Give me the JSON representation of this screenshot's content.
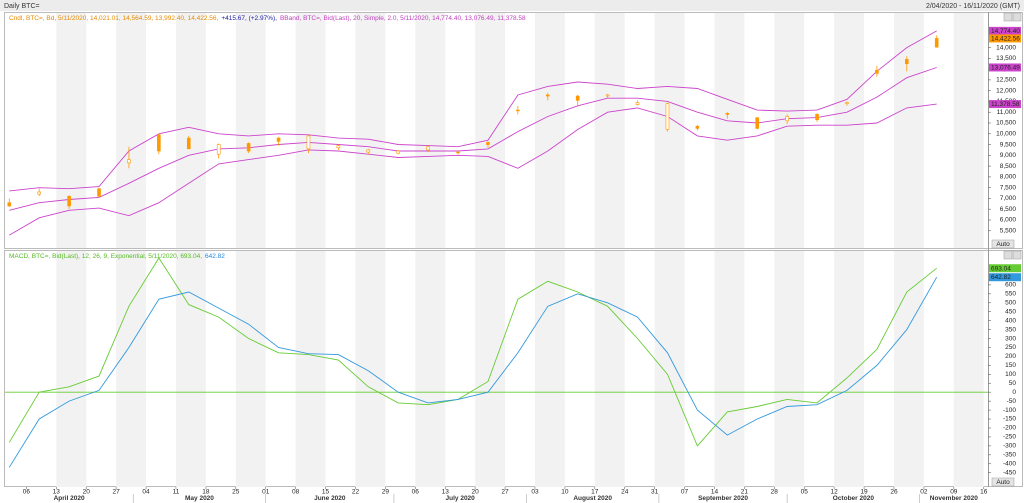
{
  "header": {
    "title": "Daily BTC=",
    "range": "2/04/2020 - 16/11/2020 (GMT)",
    "auto_label": "Auto"
  },
  "chart_data": [
    {
      "type": "candlestick",
      "legend": [
        {
          "text": "Cndl, BTC=, Bd, 5/11/2020, 14,021.01, 14,564.59, 13,992.40, 14,422.56,",
          "color": "#e68a00"
        },
        {
          "text": "+415.67, (+2.97%),",
          "color": "#1a1aa6"
        },
        {
          "text": "BBand, BTC=, Bid(Last), 20, Simple, 2.0, 5/11/2020, 14,774.40, 13,076.49, 11,378.58",
          "color": "#c040c0"
        }
      ],
      "x": [
        "2020-04-02",
        "2020-04-09",
        "2020-04-16",
        "2020-04-23",
        "2020-04-30",
        "2020-05-07",
        "2020-05-14",
        "2020-05-21",
        "2020-05-28",
        "2020-06-04",
        "2020-06-11",
        "2020-06-18",
        "2020-06-25",
        "2020-07-02",
        "2020-07-09",
        "2020-07-16",
        "2020-07-23",
        "2020-07-30",
        "2020-08-06",
        "2020-08-13",
        "2020-08-20",
        "2020-08-27",
        "2020-09-03",
        "2020-09-10",
        "2020-09-17",
        "2020-09-24",
        "2020-10-01",
        "2020-10-08",
        "2020-10-15",
        "2020-10-22",
        "2020-10-29",
        "2020-11-05"
      ],
      "open": [
        6650,
        7300,
        6650,
        7100,
        8800,
        9200,
        9300,
        9500,
        9200,
        9650,
        9900,
        9450,
        9250,
        9200,
        9400,
        9150,
        9500,
        11100,
        11750,
        11550,
        11800,
        11450,
        11400,
        10250,
        10900,
        10250,
        10800,
        10650,
        11450,
        12800,
        13250,
        14021.01
      ],
      "high": [
        7000,
        7450,
        7150,
        7500,
        9400,
        10000,
        9900,
        9550,
        9600,
        9850,
        9950,
        9500,
        9300,
        9250,
        9450,
        9200,
        9650,
        11300,
        11900,
        11800,
        11850,
        11550,
        11450,
        10400,
        11000,
        10750,
        10900,
        10950,
        11500,
        13150,
        13600,
        14564.59
      ],
      "low": [
        6600,
        7100,
        6500,
        7050,
        8400,
        9050,
        9300,
        8850,
        9100,
        9450,
        9100,
        9250,
        9050,
        9050,
        9150,
        9050,
        9350,
        10900,
        11550,
        11250,
        11650,
        11300,
        10100,
        10150,
        10700,
        10200,
        10450,
        10550,
        11300,
        12650,
        12900,
        13992.4
      ],
      "close": [
        6800,
        7200,
        7100,
        7450,
        8650,
        9950,
        9800,
        9050,
        9550,
        9800,
        9300,
        9350,
        9150,
        9100,
        9250,
        9150,
        9600,
        11100,
        11800,
        11750,
        11750,
        11350,
        10200,
        10350,
        10950,
        10750,
        10600,
        10900,
        11400,
        12950,
        13450,
        14422.56
      ],
      "color": "#ff9900",
      "series": [
        {
          "name": "BBand upper",
          "color": "#cc44cc",
          "values": [
            7350,
            7500,
            7450,
            7550,
            9200,
            10000,
            10300,
            10000,
            9900,
            10000,
            9950,
            9800,
            9750,
            9500,
            9450,
            9400,
            9700,
            11800,
            12200,
            12400,
            12300,
            12100,
            12200,
            12100,
            11600,
            11100,
            11050,
            11100,
            11600,
            12900,
            14000,
            14774.4
          ]
        },
        {
          "name": "BBand middle",
          "color": "#cc44cc",
          "values": [
            6450,
            6800,
            6950,
            7050,
            7700,
            8400,
            9000,
            9300,
            9350,
            9500,
            9600,
            9500,
            9400,
            9200,
            9200,
            9200,
            9300,
            10100,
            10800,
            11300,
            11650,
            11650,
            11500,
            11000,
            10600,
            10500,
            10700,
            10750,
            11000,
            11700,
            12600,
            13076.49
          ]
        },
        {
          "name": "BBand lower",
          "color": "#cc44cc",
          "values": [
            5300,
            6100,
            6450,
            6550,
            6200,
            6800,
            7700,
            8600,
            8800,
            9000,
            9250,
            9200,
            9050,
            8900,
            8950,
            9000,
            8950,
            8400,
            9200,
            10200,
            11000,
            11200,
            10800,
            9900,
            9700,
            9900,
            10350,
            10400,
            10400,
            10500,
            11200,
            11378.58
          ]
        }
      ],
      "tags": [
        {
          "value": 14774.4,
          "label": "14,774.40",
          "color": "#cc44cc"
        },
        {
          "value": 14422.56,
          "label": "14,422.56",
          "color": "#ff9900"
        },
        {
          "value": 13076.49,
          "label": "13,076.49",
          "color": "#cc44cc"
        },
        {
          "value": 11378.58,
          "label": "11,378.58",
          "color": "#cc44cc"
        }
      ],
      "xlim": [
        "2020-04-01",
        "2020-11-17"
      ],
      "ylim": [
        4700,
        15650
      ],
      "yticks": [
        {
          "value": 5500,
          "label": "5,500"
        },
        {
          "value": 6000,
          "label": "6,000"
        },
        {
          "value": 6500,
          "label": "6,500"
        },
        {
          "value": 7000,
          "label": "7,000"
        },
        {
          "value": 7500,
          "label": "7,500"
        },
        {
          "value": 8000,
          "label": "8,000"
        },
        {
          "value": 8500,
          "label": "8,500"
        },
        {
          "value": 9000,
          "label": "9,000"
        },
        {
          "value": 9500,
          "label": "9,500"
        },
        {
          "value": 10000,
          "label": "10,000"
        },
        {
          "value": 10500,
          "label": "10,500"
        },
        {
          "value": 11000,
          "label": "11,000"
        },
        {
          "value": 11500,
          "label": "11,500"
        },
        {
          "value": 12000,
          "label": "12,000"
        },
        {
          "value": 12500,
          "label": "12,500"
        },
        {
          "value": 13000,
          "label": "13,000"
        },
        {
          "value": 13500,
          "label": "13,500"
        },
        {
          "value": 14000,
          "label": "14,000"
        }
      ]
    },
    {
      "type": "line",
      "legend": [
        {
          "text": "MACD, BTC=, Bid(Last), 12, 26, 9, Exponential, 5/11/2020, 693.04,",
          "color": "#55bb22"
        },
        {
          "text": "642.82",
          "color": "#2288dd"
        }
      ],
      "x": [
        "2020-04-02",
        "2020-04-09",
        "2020-04-16",
        "2020-04-23",
        "2020-04-30",
        "2020-05-07",
        "2020-05-14",
        "2020-05-21",
        "2020-05-28",
        "2020-06-04",
        "2020-06-11",
        "2020-06-18",
        "2020-06-25",
        "2020-07-02",
        "2020-07-09",
        "2020-07-16",
        "2020-07-23",
        "2020-07-30",
        "2020-08-06",
        "2020-08-13",
        "2020-08-20",
        "2020-08-27",
        "2020-09-03",
        "2020-09-10",
        "2020-09-17",
        "2020-09-24",
        "2020-10-01",
        "2020-10-08",
        "2020-10-15",
        "2020-10-22",
        "2020-10-29",
        "2020-11-05"
      ],
      "series": [
        {
          "name": "MACD",
          "color": "#66cc33",
          "values": [
            -280,
            0,
            30,
            90,
            480,
            750,
            490,
            420,
            300,
            220,
            210,
            180,
            30,
            -60,
            -70,
            -40,
            60,
            520,
            620,
            560,
            480,
            300,
            100,
            -300,
            -110,
            -80,
            -40,
            -60,
            80,
            240,
            560,
            693.04
          ]
        },
        {
          "name": "Signal",
          "color": "#3399dd",
          "values": [
            -420,
            -150,
            -50,
            10,
            250,
            520,
            560,
            470,
            380,
            250,
            215,
            210,
            120,
            0,
            -60,
            -40,
            0,
            220,
            480,
            550,
            500,
            420,
            220,
            -100,
            -240,
            -150,
            -80,
            -70,
            10,
            150,
            350,
            642.82
          ]
        }
      ],
      "reference_line": 0,
      "reference_color": "#66cc33",
      "tags": [
        {
          "value": 693.04,
          "label": "693.04",
          "color": "#66cc33"
        },
        {
          "value": 642.82,
          "label": "642.82",
          "color": "#3399dd"
        }
      ],
      "xlim": [
        "2020-04-01",
        "2020-11-17"
      ],
      "ylim": [
        -530,
        795
      ],
      "yticks": [
        -450,
        -400,
        -350,
        -300,
        -250,
        -200,
        -150,
        -100,
        -50,
        0,
        50,
        100,
        150,
        200,
        250,
        300,
        350,
        400,
        450,
        500,
        550,
        600
      ],
      "xticks": [
        {
          "value": "2020-04-06",
          "label": "06"
        },
        {
          "value": "2020-04-13",
          "label": "13"
        },
        {
          "value": "2020-04-20",
          "label": "20"
        },
        {
          "value": "2020-04-27",
          "label": "27"
        },
        {
          "value": "2020-05-04",
          "label": "04"
        },
        {
          "value": "2020-05-11",
          "label": "11"
        },
        {
          "value": "2020-05-18",
          "label": "18"
        },
        {
          "value": "2020-05-25",
          "label": "25"
        },
        {
          "value": "2020-06-01",
          "label": "01"
        },
        {
          "value": "2020-06-08",
          "label": "08"
        },
        {
          "value": "2020-06-15",
          "label": "15"
        },
        {
          "value": "2020-06-22",
          "label": "22"
        },
        {
          "value": "2020-06-29",
          "label": "29"
        },
        {
          "value": "2020-07-06",
          "label": "06"
        },
        {
          "value": "2020-07-13",
          "label": "13"
        },
        {
          "value": "2020-07-20",
          "label": "20"
        },
        {
          "value": "2020-07-27",
          "label": "27"
        },
        {
          "value": "2020-08-03",
          "label": "03"
        },
        {
          "value": "2020-08-10",
          "label": "10"
        },
        {
          "value": "2020-08-17",
          "label": "17"
        },
        {
          "value": "2020-08-24",
          "label": "24"
        },
        {
          "value": "2020-08-31",
          "label": "31"
        },
        {
          "value": "2020-09-07",
          "label": "07"
        },
        {
          "value": "2020-09-14",
          "label": "14"
        },
        {
          "value": "2020-09-21",
          "label": "21"
        },
        {
          "value": "2020-09-28",
          "label": "28"
        },
        {
          "value": "2020-10-05",
          "label": "05"
        },
        {
          "value": "2020-10-12",
          "label": "12"
        },
        {
          "value": "2020-10-19",
          "label": "19"
        },
        {
          "value": "2020-10-26",
          "label": "26"
        },
        {
          "value": "2020-11-02",
          "label": "02"
        },
        {
          "value": "2020-11-09",
          "label": "09"
        },
        {
          "value": "2020-11-16",
          "label": "16"
        }
      ],
      "month_labels": [
        {
          "value": "2020-04",
          "label": "April 2020"
        },
        {
          "value": "2020-05",
          "label": "May 2020"
        },
        {
          "value": "2020-06",
          "label": "June 2020"
        },
        {
          "value": "2020-07",
          "label": "July 2020"
        },
        {
          "value": "2020-08",
          "label": "August 2020"
        },
        {
          "value": "2020-09",
          "label": "September 2020"
        },
        {
          "value": "2020-10",
          "label": "October 2020"
        },
        {
          "value": "2020-11",
          "label": "November 2020"
        }
      ]
    }
  ]
}
